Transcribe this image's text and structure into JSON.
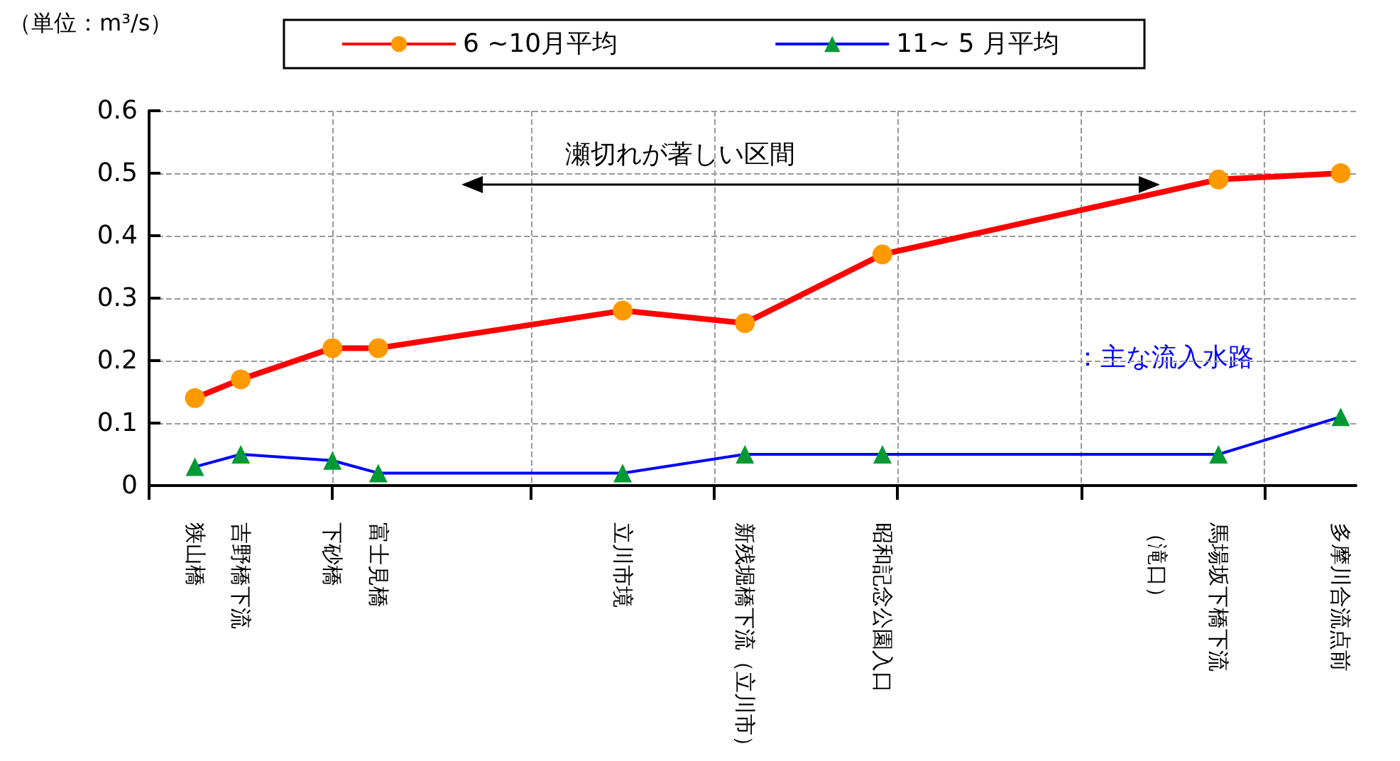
{
  "chart_data": {
    "type": "line",
    "ylabel": "（単位：m³/s）",
    "categories": [
      null,
      null,
      null,
      "狭山橋",
      null,
      null,
      "吉野橋下流",
      null,
      null,
      null,
      null,
      null,
      "下砂橋",
      null,
      null,
      "富士見橋",
      null,
      null,
      null,
      null,
      null,
      null,
      null,
      null,
      null,
      null,
      null,
      null,
      null,
      null,
      null,
      "立川市境",
      null,
      null,
      null,
      null,
      null,
      null,
      null,
      "新残堀橋下流（立川市）",
      null,
      null,
      null,
      null,
      null,
      null,
      null,
      null,
      "昭和記念公園入口",
      null,
      null,
      null,
      null,
      null,
      null,
      null,
      null,
      null,
      null,
      null,
      null,
      null,
      null,
      null,
      null,
      null,
      "（滝口）",
      null,
      null,
      null,
      "馬場坂下橋下流",
      null,
      null,
      null,
      null,
      null,
      null,
      null,
      "多摩川合流点前",
      null
    ],
    "series": [
      {
        "name": "6 ~10月平均",
        "color": "#ff0000",
        "marker": "circle",
        "values": [
          null,
          null,
          null,
          0.14,
          null,
          null,
          0.17,
          null,
          null,
          null,
          null,
          null,
          0.22,
          null,
          null,
          0.22,
          null,
          null,
          null,
          null,
          null,
          null,
          null,
          null,
          null,
          null,
          null,
          null,
          null,
          null,
          null,
          0.28,
          null,
          null,
          null,
          null,
          null,
          null,
          null,
          0.26,
          null,
          null,
          null,
          null,
          null,
          null,
          null,
          null,
          0.37,
          null,
          null,
          null,
          null,
          null,
          null,
          null,
          null,
          null,
          null,
          null,
          null,
          null,
          null,
          null,
          null,
          null,
          null,
          null,
          null,
          null,
          0.49,
          null,
          null,
          null,
          null,
          null,
          null,
          null,
          0.5,
          null
        ]
      },
      {
        "name": "11~ 5 月平均",
        "color": "#0000ff",
        "marker": "triangle",
        "values": [
          null,
          null,
          null,
          0.03,
          null,
          null,
          0.05,
          null,
          null,
          null,
          null,
          null,
          0.04,
          null,
          null,
          0.02,
          null,
          null,
          null,
          null,
          null,
          null,
          null,
          null,
          null,
          null,
          null,
          null,
          null,
          null,
          null,
          0.02,
          null,
          null,
          null,
          null,
          null,
          null,
          null,
          0.05,
          null,
          null,
          null,
          null,
          null,
          null,
          null,
          null,
          0.05,
          null,
          null,
          null,
          null,
          null,
          null,
          null,
          null,
          null,
          null,
          null,
          null,
          null,
          null,
          null,
          null,
          null,
          null,
          null,
          null,
          null,
          0.05,
          null,
          null,
          null,
          null,
          null,
          null,
          null,
          0.11,
          null
        ]
      }
    ],
    "ylim": [
      0,
      0.6
    ],
    "yticks": [
      0,
      0.1,
      0.2,
      0.3,
      0.4,
      0.5,
      0.6
    ],
    "grid": true,
    "legend": "top",
    "annotations": [
      "瀬切れが著しい区間",
      "：主な流入水路"
    ]
  }
}
